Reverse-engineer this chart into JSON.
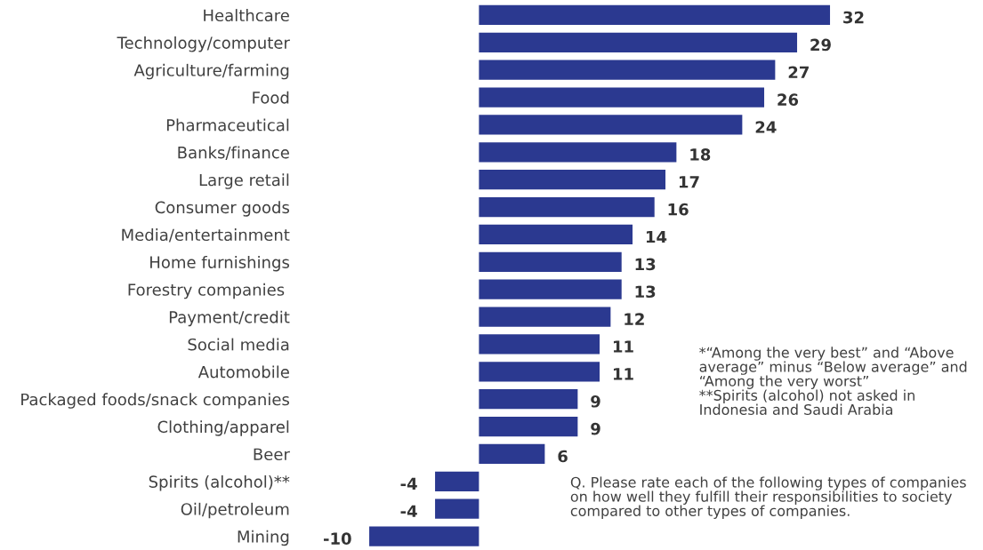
{
  "chart_data": {
    "type": "bar",
    "orientation": "horizontal",
    "categories": [
      "Healthcare",
      "Technology/computer",
      "Agriculture/farming",
      "Food",
      "Pharmaceutical",
      "Banks/finance",
      "Large retail",
      "Consumer goods",
      "Media/entertainment",
      "Home furnishings",
      "Forestry companies ",
      "Payment/credit",
      "Social media",
      "Automobile",
      "Packaged foods/snack companies",
      "Clothing/apparel",
      "Beer",
      "Spirits (alcohol)**",
      "Oil/petroleum",
      "Mining"
    ],
    "values": [
      32,
      29,
      27,
      26,
      24,
      18,
      17,
      16,
      14,
      13,
      13,
      12,
      11,
      11,
      9,
      9,
      6,
      -4,
      -4,
      -10
    ],
    "color": "#2b3990",
    "data_labels": true,
    "tick_labels": "y",
    "grid": false,
    "legend": false,
    "annotations": [
      "*“Among the very best” and “Above\naverage” minus “Below average” and\n“Among the very worst”\n**Spirits (alcohol) not asked in\nIndonesia and Saudi Arabia",
      "Q. Please rate each of the following types of companies\non how well they fulfill their responsibilities to society\ncompared to other types of companies."
    ]
  }
}
